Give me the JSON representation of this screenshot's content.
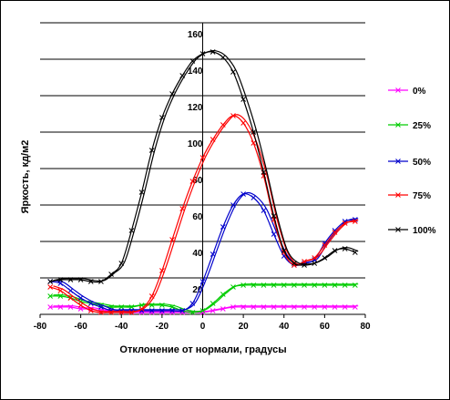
{
  "chart_data": {
    "type": "line",
    "xlabel": "Отклонение от нормали, градусы",
    "ylabel": "Яркость, кд/м2",
    "xlim": [
      -80,
      80
    ],
    "ylim": [
      0,
      160
    ],
    "x_ticks": [
      "-80",
      "-60",
      "-40",
      "-20",
      "0",
      "20",
      "40",
      "60",
      "80"
    ],
    "y_ticks": [
      "20",
      "40",
      "60",
      "80",
      "100",
      "120",
      "140",
      "160"
    ],
    "grid": "horizontal",
    "legend_position": "right",
    "series": [
      {
        "name": "0%",
        "color": "#ff00ff",
        "points": [
          [
            -75,
            4
          ],
          [
            -70,
            4
          ],
          [
            -65,
            4
          ],
          [
            -60,
            3
          ],
          [
            -55,
            3
          ],
          [
            -50,
            2
          ],
          [
            -45,
            2
          ],
          [
            -40,
            1
          ],
          [
            -35,
            1
          ],
          [
            -30,
            1
          ],
          [
            -25,
            1
          ],
          [
            -20,
            1
          ],
          [
            -15,
            1
          ],
          [
            -10,
            1
          ],
          [
            -5,
            1
          ],
          [
            0,
            1
          ],
          [
            5,
            2
          ],
          [
            10,
            3
          ],
          [
            15,
            4
          ],
          [
            20,
            4
          ],
          [
            25,
            4
          ],
          [
            30,
            4
          ],
          [
            35,
            4
          ],
          [
            40,
            4
          ],
          [
            45,
            4
          ],
          [
            50,
            4
          ],
          [
            55,
            4
          ],
          [
            60,
            4
          ],
          [
            65,
            4
          ],
          [
            70,
            4
          ],
          [
            75,
            4
          ]
        ]
      },
      {
        "name": "25%",
        "color": "#00cc00",
        "points": [
          [
            -75,
            10
          ],
          [
            -70,
            10
          ],
          [
            -65,
            9
          ],
          [
            -60,
            7
          ],
          [
            -55,
            6
          ],
          [
            -50,
            5
          ],
          [
            -45,
            4
          ],
          [
            -40,
            4
          ],
          [
            -35,
            4
          ],
          [
            -30,
            5
          ],
          [
            -25,
            5
          ],
          [
            -20,
            5
          ],
          [
            -15,
            4
          ],
          [
            -10,
            2
          ],
          [
            -5,
            1
          ],
          [
            0,
            2
          ],
          [
            5,
            6
          ],
          [
            10,
            11
          ],
          [
            15,
            15
          ],
          [
            20,
            16
          ],
          [
            25,
            16
          ],
          [
            30,
            16
          ],
          [
            35,
            16
          ],
          [
            40,
            16
          ],
          [
            45,
            16
          ],
          [
            50,
            16
          ],
          [
            55,
            16
          ],
          [
            60,
            16
          ],
          [
            65,
            16
          ],
          [
            70,
            16
          ],
          [
            75,
            16
          ]
        ]
      },
      {
        "name": "50%",
        "color": "#0000cc",
        "points": [
          [
            -75,
            18
          ],
          [
            -70,
            17
          ],
          [
            -65,
            13
          ],
          [
            -60,
            9
          ],
          [
            -55,
            6
          ],
          [
            -50,
            4
          ],
          [
            -45,
            2
          ],
          [
            -40,
            2
          ],
          [
            -35,
            2
          ],
          [
            -30,
            2
          ],
          [
            -25,
            2
          ],
          [
            -20,
            2
          ],
          [
            -15,
            2
          ],
          [
            -10,
            2
          ],
          [
            -5,
            6
          ],
          [
            0,
            18
          ],
          [
            5,
            33
          ],
          [
            10,
            48
          ],
          [
            15,
            60
          ],
          [
            20,
            66
          ],
          [
            25,
            64
          ],
          [
            30,
            57
          ],
          [
            35,
            44
          ],
          [
            40,
            32
          ],
          [
            45,
            27
          ],
          [
            50,
            28
          ],
          [
            55,
            30
          ],
          [
            60,
            39
          ],
          [
            65,
            46
          ],
          [
            70,
            51
          ],
          [
            75,
            52
          ]
        ]
      },
      {
        "name": "75%",
        "color": "#ff0000",
        "points": [
          [
            -75,
            15
          ],
          [
            -70,
            13
          ],
          [
            -65,
            9
          ],
          [
            -60,
            5
          ],
          [
            -55,
            2
          ],
          [
            -50,
            1
          ],
          [
            -45,
            1
          ],
          [
            -40,
            1
          ],
          [
            -35,
            1
          ],
          [
            -30,
            3
          ],
          [
            -25,
            10
          ],
          [
            -20,
            24
          ],
          [
            -15,
            41
          ],
          [
            -10,
            58
          ],
          [
            -5,
            73
          ],
          [
            0,
            86
          ],
          [
            5,
            96
          ],
          [
            10,
            104
          ],
          [
            15,
            109
          ],
          [
            20,
            105
          ],
          [
            25,
            94
          ],
          [
            30,
            76
          ],
          [
            35,
            52
          ],
          [
            40,
            34
          ],
          [
            45,
            27
          ],
          [
            50,
            29
          ],
          [
            55,
            31
          ],
          [
            60,
            38
          ],
          [
            65,
            45
          ],
          [
            70,
            50
          ],
          [
            75,
            51
          ]
        ]
      },
      {
        "name": "100%",
        "color": "#000000",
        "points": [
          [
            -75,
            18
          ],
          [
            -70,
            19
          ],
          [
            -65,
            19
          ],
          [
            -60,
            19
          ],
          [
            -55,
            18
          ],
          [
            -50,
            18
          ],
          [
            -45,
            22
          ],
          [
            -40,
            28
          ],
          [
            -35,
            46
          ],
          [
            -30,
            67
          ],
          [
            -25,
            90
          ],
          [
            -20,
            108
          ],
          [
            -15,
            121
          ],
          [
            -10,
            131
          ],
          [
            -5,
            139
          ],
          [
            0,
            143
          ],
          [
            5,
            144
          ],
          [
            10,
            141
          ],
          [
            15,
            133
          ],
          [
            20,
            118
          ],
          [
            25,
            100
          ],
          [
            30,
            78
          ],
          [
            35,
            54
          ],
          [
            40,
            35
          ],
          [
            45,
            28
          ],
          [
            50,
            27
          ],
          [
            55,
            28
          ],
          [
            60,
            31
          ],
          [
            65,
            35
          ],
          [
            70,
            36
          ],
          [
            75,
            34
          ]
        ]
      }
    ]
  }
}
